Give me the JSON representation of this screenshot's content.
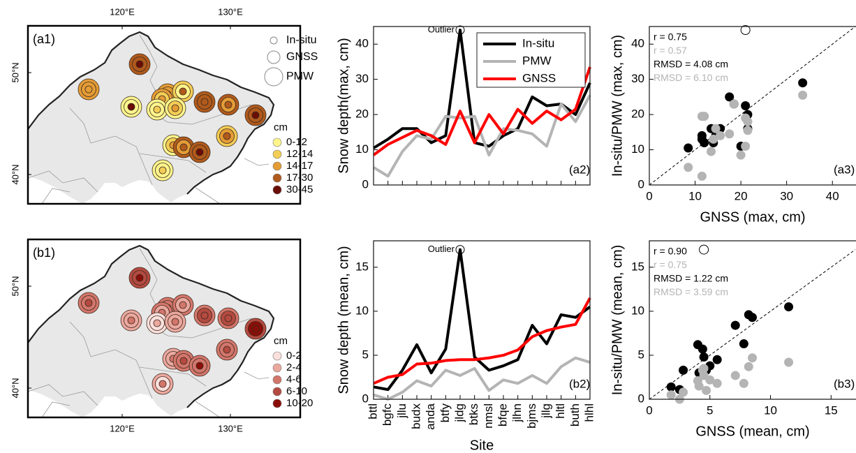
{
  "chart_data": [
    {
      "type": "map",
      "panel_label": "(a1)",
      "xticks": [
        {
          "value": 120,
          "label": "120°E"
        },
        {
          "value": 130,
          "label": "130°E"
        }
      ],
      "yticks": [
        {
          "value": 50,
          "label": "50°N"
        },
        {
          "value": 40,
          "label": "40°N"
        }
      ],
      "xaxis": "top",
      "legend": [
        "In-situ",
        "GNSS",
        "PMW"
      ],
      "colorbar_title": "cm",
      "classes": [
        {
          "label": "0-12",
          "color": "#fdf58c"
        },
        {
          "label": "12-14",
          "color": "#f3cd55"
        },
        {
          "label": "14-17",
          "color": "#e49c35"
        },
        {
          "label": "17-30",
          "color": "#b05a1c"
        },
        {
          "label": "30-45",
          "color": "#6a0d06"
        }
      ]
    },
    {
      "type": "line",
      "panel_label": "(a2)",
      "ylabel": "Snow depth(max, cm)",
      "annotation": "Outlier",
      "ylim": [
        0,
        45
      ],
      "yticks": [
        0,
        10,
        20,
        30,
        40
      ],
      "legend": "upper right",
      "series": [
        {
          "name": "In-situ",
          "color": "#000000",
          "values": [
            10.5,
            13,
            16,
            16,
            12,
            14,
            44,
            12,
            11,
            14,
            16,
            25,
            22.5,
            23,
            20,
            29
          ]
        },
        {
          "name": "PMW",
          "color": "#b4b4b4",
          "values": [
            5,
            2.5,
            9.5,
            14,
            13,
            19.5,
            19,
            19.5,
            8.5,
            16,
            15.5,
            14.5,
            11,
            23,
            18,
            25.5
          ]
        },
        {
          "name": "GNSS",
          "color": "#ff0000",
          "values": [
            8.5,
            11.5,
            13.5,
            15.5,
            14,
            11.5,
            21,
            12,
            20,
            14.5,
            21.5,
            17.5,
            21,
            18.5,
            21.5,
            33.5
          ]
        }
      ]
    },
    {
      "type": "scatter",
      "panel_label": "(a3)",
      "xlabel": "GNSS (max, cm)",
      "ylabel": "In-situ/PMW (max, cm)",
      "xlim": [
        0,
        45
      ],
      "ylim": [
        0,
        45
      ],
      "xticks": [
        0,
        10,
        20,
        30,
        40
      ],
      "yticks": [
        0,
        10,
        20,
        30,
        40
      ],
      "x": [
        8.5,
        11.5,
        13.5,
        15.5,
        14,
        11.5,
        21,
        12,
        20,
        14.5,
        21.5,
        17.5,
        21,
        18.5,
        21.5,
        33.5
      ],
      "series": [
        {
          "color": "#000000",
          "values": [
            10.5,
            13,
            16,
            16,
            12,
            14,
            null,
            12,
            11,
            14,
            16,
            25,
            22.5,
            23,
            20,
            29
          ]
        },
        {
          "color": "#b4b4b4",
          "values": [
            5,
            2.5,
            9.5,
            14,
            13,
            19.5,
            19,
            19.5,
            8.5,
            16,
            15.5,
            14.5,
            11,
            23,
            18,
            25.5
          ]
        },
        {
          "color": "#000000",
          "marker": "open",
          "values": [
            null,
            null,
            null,
            null,
            null,
            null,
            44,
            null,
            null,
            null,
            null,
            null,
            null,
            null,
            null,
            null
          ]
        }
      ],
      "stats": [
        {
          "text": "r = 0.75",
          "color": "#000000"
        },
        {
          "text": "r = 0.57",
          "color": "#b4b4b4"
        },
        {
          "text": "RMSD = 4.08 cm",
          "color": "#000000"
        },
        {
          "text": "RMSD = 6.10 cm",
          "color": "#b4b4b4"
        }
      ]
    },
    {
      "type": "map",
      "panel_label": "(b1)",
      "xticks": [
        {
          "value": 120,
          "label": "120°E"
        },
        {
          "value": 130,
          "label": "130°E"
        }
      ],
      "yticks": [
        {
          "value": 50,
          "label": "50°N"
        },
        {
          "value": 40,
          "label": "40°N"
        }
      ],
      "xaxis": "bottom",
      "colorbar_title": "cm",
      "classes": [
        {
          "label": "0-2",
          "color": "#fbe0dc"
        },
        {
          "label": "2-4",
          "color": "#eba89f"
        },
        {
          "label": "4-6",
          "color": "#d3766b"
        },
        {
          "label": "6-10",
          "color": "#b44a40"
        },
        {
          "label": "10-20",
          "color": "#8a0e08"
        }
      ]
    },
    {
      "type": "line",
      "panel_label": "(b2)",
      "ylabel": "Snow depth (mean, cm)",
      "xlabel": "Site",
      "annotation": "Outlier",
      "ylim": [
        0,
        18
      ],
      "yticks": [
        0,
        5,
        10,
        15
      ],
      "categories": [
        "bttl",
        "bgfc",
        "jllu",
        "budx",
        "anda",
        "btfy",
        "jldg",
        "btks",
        "nmsl",
        "bfqe",
        "jlhn",
        "bjms",
        "jllg",
        "hltl",
        "buth",
        "hlhl"
      ],
      "series": [
        {
          "name": "In-situ",
          "color": "#000000",
          "values": [
            1.4,
            1.1,
            3.3,
            6.2,
            3,
            5.7,
            17,
            4.8,
            3.3,
            3.8,
            4.5,
            8.4,
            6.3,
            9.6,
            9.3,
            10.5
          ]
        },
        {
          "name": "PMW",
          "color": "#b4b4b4",
          "values": [
            0.5,
            0,
            0.8,
            2.1,
            1.5,
            3.3,
            2.7,
            3.5,
            1,
            2.2,
            1.8,
            2.7,
            1.8,
            3.7,
            4.7,
            4.2
          ]
        },
        {
          "name": "GNSS",
          "color": "#ff0000",
          "values": [
            1.8,
            2.5,
            2.8,
            4,
            4.1,
            4.4,
            4.5,
            4.5,
            4.7,
            5,
            5.6,
            7.1,
            7.8,
            8.2,
            8.5,
            11.5
          ]
        }
      ]
    },
    {
      "type": "scatter",
      "panel_label": "(b3)",
      "xlabel": "GNSS (mean, cm)",
      "ylabel": "In-situ/PMW (mean, cm)",
      "xlim": [
        0,
        17
      ],
      "ylim": [
        0,
        18
      ],
      "xticks": [
        0,
        5,
        10,
        15
      ],
      "yticks": [
        0,
        5,
        10,
        15
      ],
      "x": [
        1.8,
        2.5,
        2.8,
        4,
        4.1,
        4.4,
        4.5,
        4.5,
        4.7,
        5,
        5.6,
        7.1,
        7.8,
        8.2,
        8.5,
        11.5
      ],
      "series": [
        {
          "color": "#000000",
          "values": [
            1.4,
            1.1,
            3.3,
            6.2,
            3,
            5.7,
            null,
            4.8,
            3.3,
            3.8,
            4.5,
            8.4,
            6.3,
            9.6,
            9.3,
            10.5
          ]
        },
        {
          "color": "#b4b4b4",
          "values": [
            0.5,
            0,
            0.8,
            2.1,
            1.5,
            3.3,
            2.7,
            3.5,
            1,
            2.2,
            1.8,
            2.7,
            1.8,
            3.7,
            4.7,
            4.2
          ]
        },
        {
          "color": "#000000",
          "marker": "open",
          "values": [
            null,
            null,
            null,
            null,
            null,
            null,
            17,
            null,
            null,
            null,
            null,
            null,
            null,
            null,
            null,
            null
          ]
        }
      ],
      "stats": [
        {
          "text": "r = 0.90",
          "color": "#000000"
        },
        {
          "text": "r = 0.75",
          "color": "#b4b4b4"
        },
        {
          "text": "RMSD = 1.22 cm",
          "color": "#000000"
        },
        {
          "text": "RMSD = 3.59 cm",
          "color": "#b4b4b4"
        }
      ]
    }
  ]
}
